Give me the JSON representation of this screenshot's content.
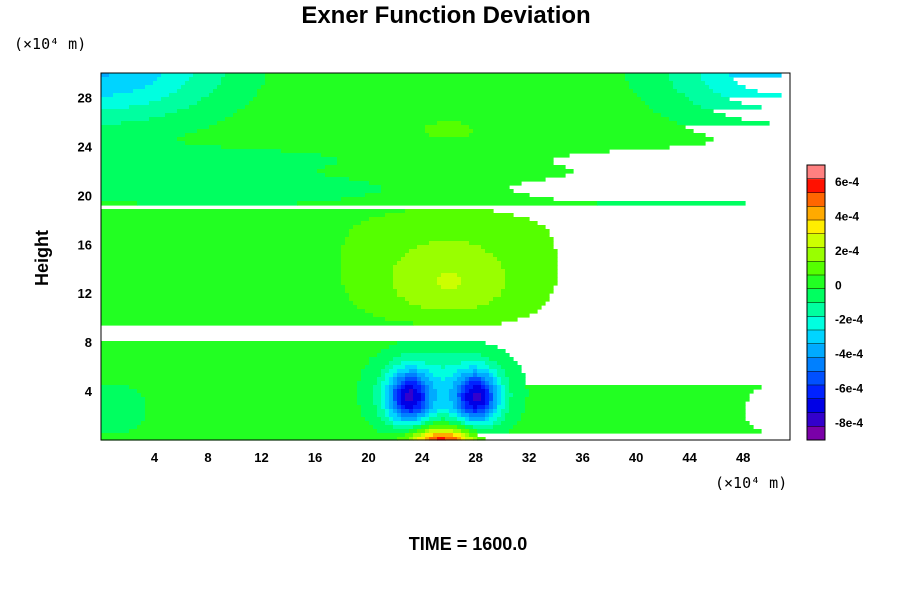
{
  "chart_data": {
    "type": "heatmap",
    "title": "Exner Function Deviation",
    "ylabel": "Height",
    "xlabel": "",
    "x_unit": "(×10⁴ m)",
    "y_unit": "(×10⁴ m)",
    "xlim": [
      0,
      51.5
    ],
    "ylim": [
      0,
      30
    ],
    "x_ticks": [
      4,
      8,
      12,
      16,
      20,
      24,
      28,
      32,
      36,
      40,
      44,
      48
    ],
    "y_ticks": [
      4,
      8,
      12,
      16,
      20,
      24,
      28
    ],
    "colorbar": {
      "range": [
        -0.0009,
        0.0007
      ],
      "ticks": [
        {
          "value": 0.0006,
          "label": "6e-4"
        },
        {
          "value": 0.0004,
          "label": "4e-4"
        },
        {
          "value": 0.0002,
          "label": "2e-4"
        },
        {
          "value": 0,
          "label": "0"
        },
        {
          "value": -0.0002,
          "label": "-2e-4"
        },
        {
          "value": -0.0004,
          "label": "-4e-4"
        },
        {
          "value": -0.0006,
          "label": "-6e-4"
        },
        {
          "value": -0.0008,
          "label": "-8e-4"
        }
      ]
    },
    "features": [
      {
        "kind": "positive-max",
        "x": 25.5,
        "y": 0.3,
        "value": 0.0007
      },
      {
        "kind": "negative-min",
        "x": 23,
        "y": 3.5,
        "value": -0.0006
      },
      {
        "kind": "negative-min",
        "x": 28,
        "y": 3.5,
        "value": -0.0006
      },
      {
        "kind": "weak-positive",
        "x": 26,
        "y": 12.5,
        "value": 0.00012
      },
      {
        "kind": "corner-negative",
        "x": 0,
        "y": 30,
        "value": -0.00035
      },
      {
        "kind": "corner-negative",
        "x": 51.5,
        "y": 30,
        "value": -0.00035
      }
    ],
    "time_label": "TIME = 1600.0"
  }
}
